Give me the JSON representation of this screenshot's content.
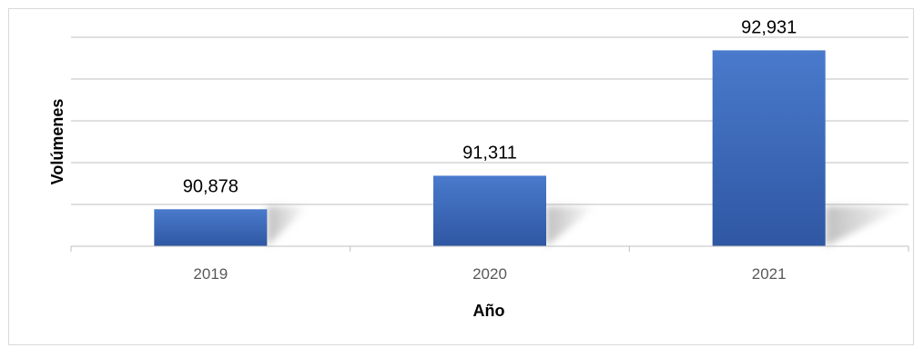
{
  "chart_data": {
    "type": "bar",
    "categories": [
      "2019",
      "2020",
      "2021"
    ],
    "values": [
      90878,
      91311,
      92931
    ],
    "data_labels": [
      "90,878",
      "91,311",
      "92,931"
    ],
    "title": "",
    "xlabel": "Año",
    "ylabel": "Volúmenes",
    "ylim": [
      90400,
      93100
    ],
    "grid": true,
    "legend": "none",
    "colors": {
      "bar_top": "#4a7acc",
      "bar_bottom": "#2f57a3",
      "gridline": "#bfbfbf",
      "axis": "#bfbfbf"
    }
  }
}
